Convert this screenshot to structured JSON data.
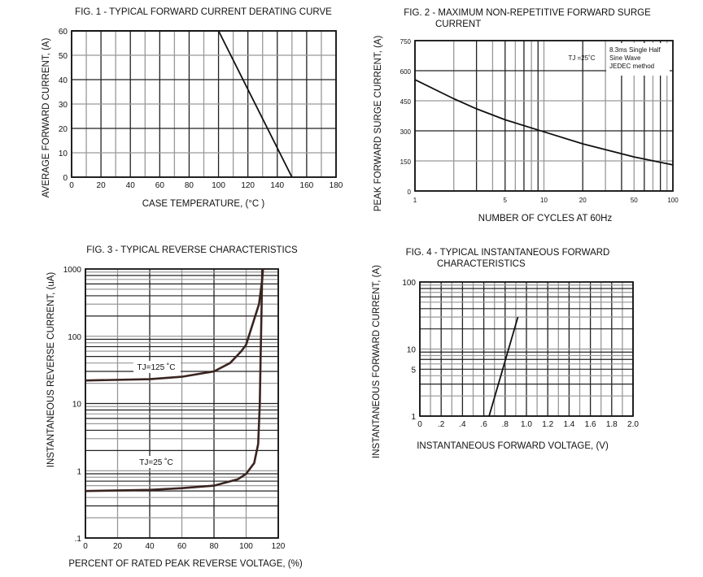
{
  "chart_data": [
    {
      "type": "line",
      "title": "FIG. 1 - TYPICAL FORWARD CURRENT DERATING CURVE",
      "xlabel": "CASE TEMPERATURE, (°C )",
      "ylabel": "AVERAGE FORWARD CURRENT, (A)",
      "xlim": [
        0,
        180
      ],
      "ylim": [
        0,
        60
      ],
      "x_scale": "linear",
      "y_scale": "linear",
      "xticks": [
        "0",
        "20",
        "40",
        "60",
        "80",
        "100",
        "120",
        "140",
        "160",
        "180"
      ],
      "yticks": [
        "0",
        "10",
        "20",
        "30",
        "40",
        "50",
        "60"
      ],
      "grid": true,
      "series": [
        {
          "x": [
            0,
            100,
            150
          ],
          "y": [
            60,
            60,
            0
          ]
        }
      ]
    },
    {
      "type": "line",
      "title": [
        "FIG. 2 - MAXIMUM NON-REPETITIVE FORWARD SURGE",
        "CURRENT"
      ],
      "xlabel": "NUMBER OF CYCLES AT 60Hz",
      "ylabel": "PEAK FORWARD SURGE CURRENT, (A)",
      "xlim": [
        1,
        100
      ],
      "ylim": [
        0,
        750
      ],
      "x_scale": "log",
      "y_scale": "linear",
      "xticks": [
        "1",
        "5",
        "10",
        "20",
        "50",
        "100"
      ],
      "yticks": [
        "0",
        "150",
        "300",
        "450",
        "600",
        "750"
      ],
      "grid": true,
      "annotations": [
        "TJ =25˚C",
        "8.3ms Single Half",
        "Sine Wave",
        "JEDEC method"
      ],
      "series": [
        {
          "x": [
            1,
            2,
            3,
            5,
            10,
            20,
            50,
            100
          ],
          "y": [
            555,
            460,
            410,
            355,
            295,
            235,
            170,
            130
          ]
        }
      ]
    },
    {
      "type": "line",
      "title": "FIG. 3 - TYPICAL REVERSE CHARACTERISTICS",
      "xlabel": "PERCENT OF RATED PEAK REVERSE VOLTAGE, (%)",
      "ylabel": "INSTANTANEOUS REVERSE CURRENT, (uA)",
      "xlim": [
        0,
        120
      ],
      "ylim": [
        0.1,
        1000
      ],
      "x_scale": "linear",
      "y_scale": "log",
      "xticks": [
        "0",
        "20",
        "40",
        "60",
        "80",
        "100",
        "120"
      ],
      "yticks": [
        ".1",
        "1",
        "10",
        "100",
        "1000"
      ],
      "grid": true,
      "series": [
        {
          "name": "TJ=125 ˚C",
          "x": [
            0,
            40,
            60,
            80,
            90,
            97,
            100,
            104,
            108,
            110,
            110.5
          ],
          "y": [
            22,
            23,
            25,
            30,
            40,
            60,
            75,
            150,
            300,
            700,
            1000
          ]
        },
        {
          "name": "TJ=25 ˚C",
          "x": [
            0,
            40,
            60,
            80,
            95,
            100,
            105,
            107.5,
            108.5,
            109,
            109.5,
            110
          ],
          "y": [
            0.5,
            0.52,
            0.55,
            0.6,
            0.75,
            0.9,
            1.3,
            2.5,
            10,
            50,
            200,
            1000
          ]
        }
      ]
    },
    {
      "type": "line",
      "title": [
        "FIG. 4 - TYPICAL INSTANTANEOUS FORWARD",
        "CHARACTERISTICS"
      ],
      "xlabel": "INSTANTANEOUS FORWARD VOLTAGE, (V)",
      "ylabel": "INSTANTANEOUS FORWARD CURRENT, (A)",
      "xlim": [
        0,
        2.0
      ],
      "ylim": [
        1,
        100
      ],
      "x_scale": "linear",
      "y_scale": "log",
      "xticks": [
        "0",
        ".2",
        ".4",
        ".6",
        ".8",
        "1.0",
        "1.2",
        "1.4",
        "1.6",
        "1.8",
        "2.0"
      ],
      "yticks": [
        "1",
        "5",
        "10",
        "100"
      ],
      "grid": true,
      "series": [
        {
          "x": [
            0.65,
            0.92
          ],
          "y": [
            1,
            30
          ]
        }
      ]
    }
  ]
}
